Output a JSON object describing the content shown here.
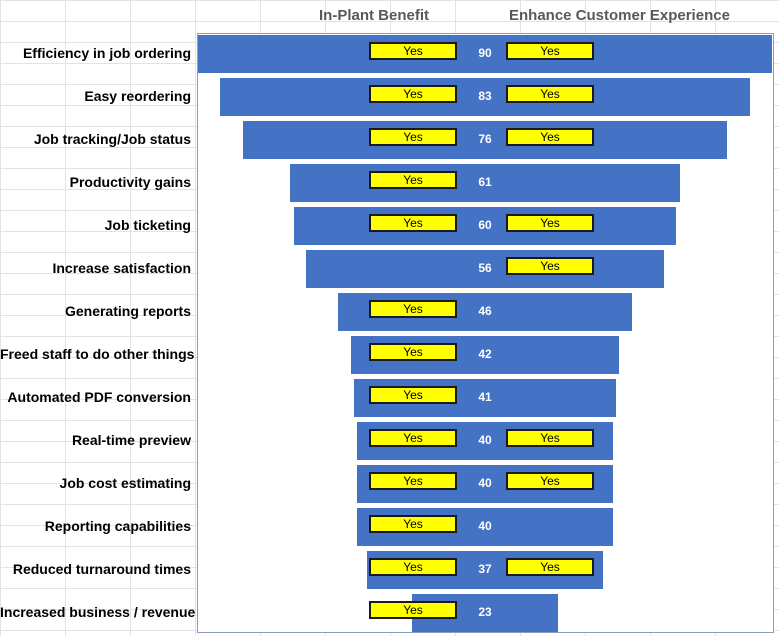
{
  "chart_data": {
    "type": "bar",
    "orientation": "horizontal-centered-funnel",
    "column_headers": {
      "in_plant": "In-Plant Benefit",
      "customer": "Enhance Customer Experience"
    },
    "flag_text": "Yes",
    "colors": {
      "bar": "#4472c4",
      "flag": "#ffff00",
      "value_text": "#ffffff"
    },
    "xlim": [
      0,
      90
    ],
    "rows": [
      {
        "label": "Efficiency in job ordering",
        "value": 90,
        "in_plant": true,
        "customer": true
      },
      {
        "label": "Easy reordering",
        "value": 83,
        "in_plant": true,
        "customer": true
      },
      {
        "label": "Job tracking/Job status",
        "value": 76,
        "in_plant": true,
        "customer": true
      },
      {
        "label": "Productivity gains",
        "value": 61,
        "in_plant": true,
        "customer": false
      },
      {
        "label": "Job ticketing",
        "value": 60,
        "in_plant": true,
        "customer": true
      },
      {
        "label": "Increase satisfaction",
        "value": 56,
        "in_plant": false,
        "customer": true
      },
      {
        "label": "Generating reports",
        "value": 46,
        "in_plant": true,
        "customer": false
      },
      {
        "label": "Freed staff to do other things",
        "value": 42,
        "in_plant": true,
        "customer": false
      },
      {
        "label": "Automated PDF conversion",
        "value": 41,
        "in_plant": true,
        "customer": false
      },
      {
        "label": "Real-time preview",
        "value": 40,
        "in_plant": true,
        "customer": true
      },
      {
        "label": "Job cost estimating",
        "value": 40,
        "in_plant": true,
        "customer": true
      },
      {
        "label": "Reporting capabilities",
        "value": 40,
        "in_plant": true,
        "customer": false
      },
      {
        "label": "Reduced turnaround times",
        "value": 37,
        "in_plant": true,
        "customer": true
      },
      {
        "label": "Increased business / revenue",
        "value": 23,
        "in_plant": true,
        "customer": false
      }
    ]
  }
}
